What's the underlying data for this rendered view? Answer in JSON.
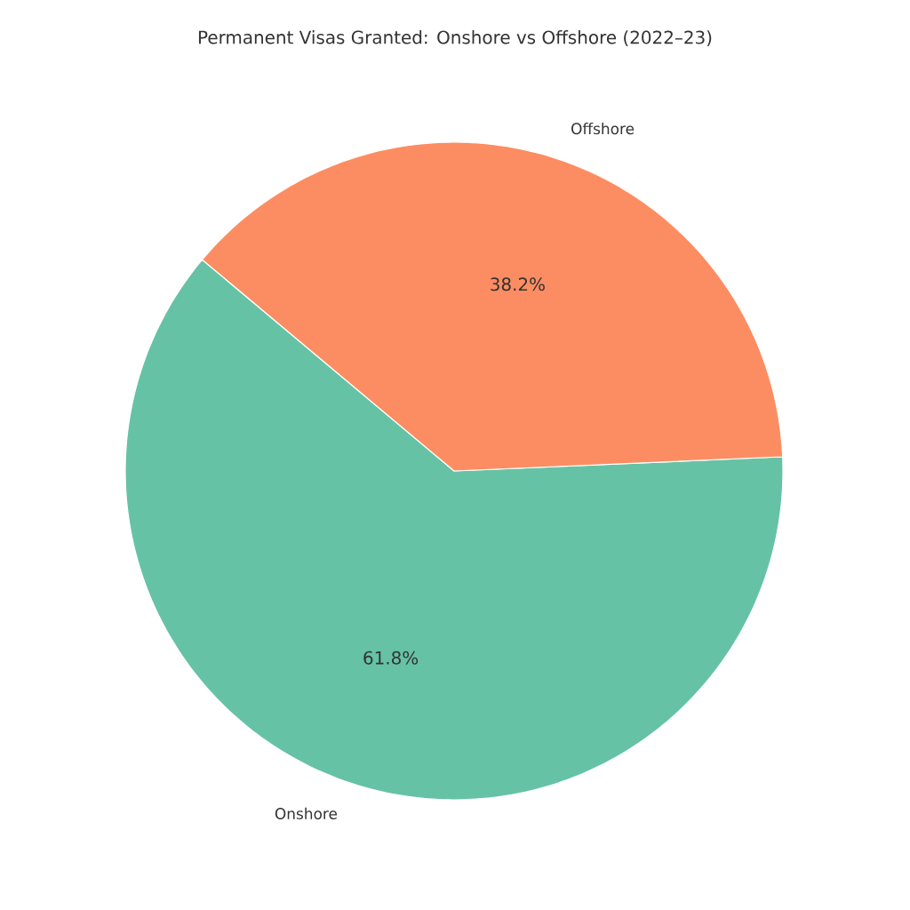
{
  "chart_data": {
    "type": "pie",
    "title": "Permanent Visas Granted: Onshore vs Offshore (2022–23)",
    "categories": [
      "Onshore",
      "Offshore"
    ],
    "values": [
      61.8,
      38.2
    ],
    "value_labels": [
      "61.8%",
      "38.2%"
    ],
    "colors": [
      "#66c2a5",
      "#fc8d62"
    ]
  }
}
